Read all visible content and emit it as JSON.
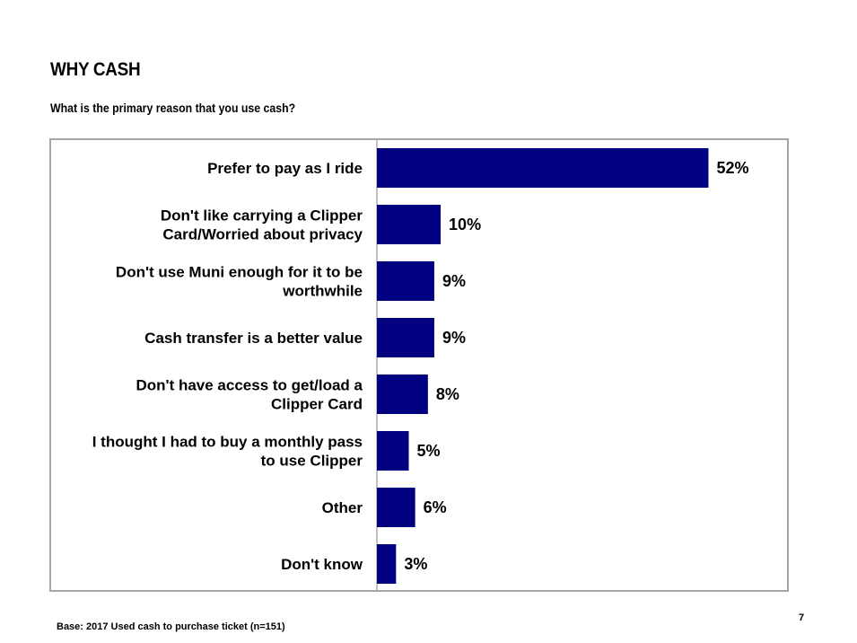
{
  "page": {
    "title": "WHY CASH",
    "subtitle": "What is the primary reason that you use cash?",
    "footnote": "Base: 2017 Used cash to purchase ticket (n=151)",
    "page_number": "7"
  },
  "colors": {
    "bar": "#000080",
    "frame": "#a6a6a6",
    "axis": "#808080"
  },
  "chart_data": {
    "type": "bar",
    "orientation": "horizontal",
    "categories": [
      [
        "Prefer to pay as I ride"
      ],
      [
        "Don't like carrying a Clipper",
        "Card/Worried about privacy"
      ],
      [
        "Don't use Muni enough for it to be",
        "worthwhile"
      ],
      [
        "Cash transfer is a better value"
      ],
      [
        "Don't have access to get/load a",
        "Clipper Card"
      ],
      [
        "I thought I had to buy a monthly pass",
        "to use Clipper"
      ],
      [
        "Other"
      ],
      [
        "Don't know"
      ]
    ],
    "values": [
      52,
      10,
      9,
      9,
      8,
      5,
      6,
      3
    ],
    "value_labels": [
      "52%",
      "10%",
      "9%",
      "9%",
      "8%",
      "5%",
      "6%",
      "3%"
    ],
    "xlim": [
      0,
      60
    ],
    "grid": false,
    "legend": "none"
  }
}
